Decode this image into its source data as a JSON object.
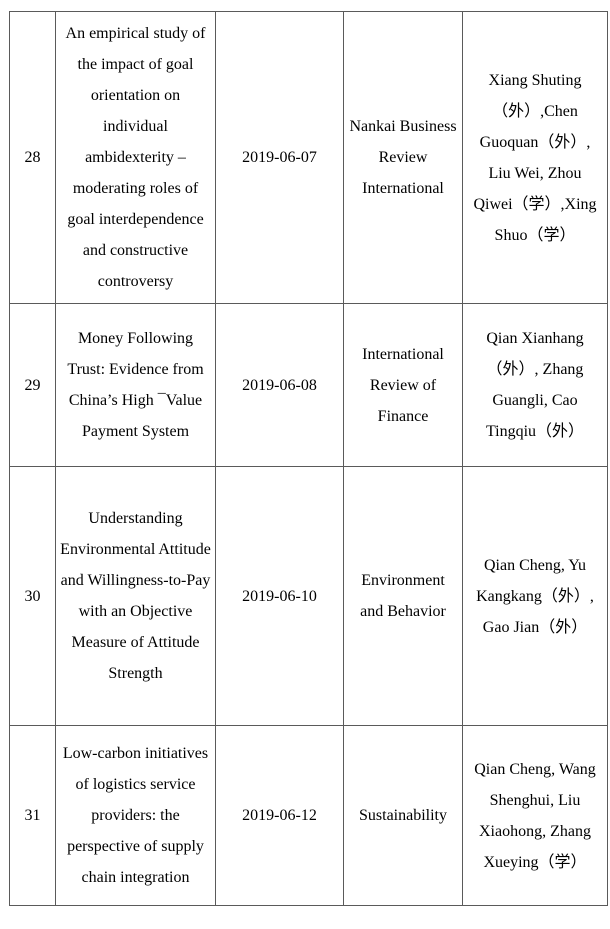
{
  "document": {
    "kind": "publication-list-table",
    "border_color": "#5a5a5a",
    "background_color": "#ffffff",
    "text_color": "#000000"
  },
  "table": {
    "columns": [
      "number",
      "title",
      "date",
      "journal",
      "authors"
    ],
    "rows": [
      {
        "no": "28",
        "title": "An empirical study of the impact of goal orientation on individual ambidexterity – moderating roles of goal interdependence and constructive controversy",
        "date": "2019-06-07",
        "journal": "Nankai Business Review International",
        "authors": "Xiang Shuting （外）,Chen Guoquan（外）, Liu Wei, Zhou Qiwei（学）,Xing Shuo（学）"
      },
      {
        "no": "29",
        "title": "Money Following Trust: Evidence from China’s High ¯Value Payment System",
        "date": "2019-06-08",
        "journal": "International Review of Finance",
        "authors": "Qian Xianhang （外）, Zhang Guangli, Cao Tingqiu（外）"
      },
      {
        "no": "30",
        "title": "Understanding Environmental Attitude and Willingness-to-Pay with an Objective Measure of Attitude Strength",
        "date": "2019-06-10",
        "journal": "Environment and Behavior",
        "authors": "Qian Cheng, Yu Kangkang（外）, Gao Jian（外）"
      },
      {
        "no": "31",
        "title": "Low-carbon initiatives of logistics service providers: the perspective of supply chain integration",
        "date": "2019-06-12",
        "journal": "Sustainability",
        "authors": "Qian Cheng, Wang Shenghui, Liu Xiaohong, Zhang Xueying（学）"
      }
    ]
  }
}
